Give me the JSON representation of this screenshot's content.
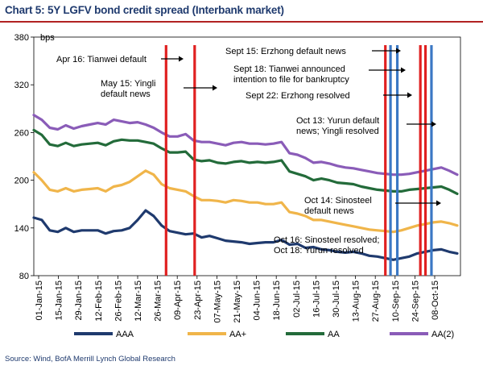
{
  "chart_data": {
    "type": "line",
    "title": "Chart 5: 5Y LGFV bond credit spread (Interbank market)",
    "ylabel": "bps",
    "ylim": [
      80,
      380
    ],
    "yticks": [
      80,
      140,
      200,
      260,
      320,
      380
    ],
    "xlabels": [
      "01-Jan-15",
      "15-Jan-15",
      "29-Jan-15",
      "12-Feb-15",
      "26-Feb-15",
      "12-Mar-15",
      "26-Mar-15",
      "09-Apr-15",
      "23-Apr-15",
      "07-May-15",
      "21-May-15",
      "04-Jun-15",
      "18-Jun-15",
      "02-Jul-15",
      "16-Jul-15",
      "30-Jul-15",
      "13-Aug-15",
      "27-Aug-15",
      "10-Sep-15",
      "24-Sep-15",
      "08-Oct-15"
    ],
    "source": "Source: Wind, BofA Merrill Lynch Global Research",
    "series": [
      {
        "name": "AAA",
        "color": "#1f3a6e",
        "values": [
          153,
          150,
          137,
          135,
          140,
          135,
          137,
          137,
          137,
          133,
          136,
          137,
          140,
          150,
          162,
          155,
          143,
          136,
          134,
          132,
          133,
          128,
          130,
          127,
          124,
          123,
          122,
          120,
          121,
          122,
          122,
          125,
          119,
          120,
          115,
          116,
          113,
          112,
          110,
          109,
          110,
          108,
          105,
          104,
          102,
          100,
          102,
          104,
          108,
          110,
          112,
          113,
          110,
          108
        ]
      },
      {
        "name": "AA+",
        "color": "#f0b54a",
        "values": [
          210,
          200,
          188,
          186,
          190,
          186,
          188,
          189,
          190,
          186,
          192,
          194,
          198,
          205,
          212,
          207,
          195,
          190,
          188,
          186,
          180,
          175,
          175,
          174,
          172,
          175,
          174,
          172,
          172,
          170,
          170,
          172,
          160,
          158,
          155,
          150,
          150,
          148,
          146,
          144,
          142,
          140,
          138,
          137,
          136,
          135,
          137,
          140,
          143,
          145,
          147,
          148,
          146,
          143
        ]
      },
      {
        "name": "AA",
        "color": "#236b3a",
        "values": [
          263,
          257,
          245,
          243,
          247,
          243,
          245,
          246,
          247,
          244,
          249,
          251,
          250,
          250,
          248,
          246,
          240,
          235,
          235,
          236,
          226,
          224,
          225,
          222,
          221,
          223,
          224,
          222,
          223,
          222,
          223,
          225,
          211,
          208,
          205,
          200,
          202,
          200,
          197,
          196,
          195,
          192,
          190,
          188,
          187,
          186,
          186,
          188,
          189,
          190,
          191,
          192,
          188,
          183
        ]
      },
      {
        "name": "AA(2)",
        "color": "#8a5cb8",
        "values": [
          282,
          276,
          266,
          264,
          269,
          265,
          268,
          270,
          272,
          270,
          276,
          274,
          272,
          273,
          270,
          266,
          260,
          255,
          255,
          258,
          250,
          248,
          248,
          246,
          244,
          247,
          248,
          246,
          246,
          245,
          246,
          248,
          234,
          232,
          228,
          222,
          223,
          221,
          218,
          216,
          215,
          213,
          211,
          209,
          208,
          207,
          207,
          208,
          210,
          212,
          214,
          216,
          212,
          207
        ]
      }
    ],
    "events": [
      {
        "x": 0.31,
        "color": "#e02020"
      },
      {
        "x": 0.377,
        "color": "#e02020"
      },
      {
        "x": 0.824,
        "color": "#e02020"
      },
      {
        "x": 0.836,
        "color": "#3b78c4"
      },
      {
        "x": 0.852,
        "color": "#3b78c4"
      },
      {
        "x": 0.906,
        "color": "#e02020"
      },
      {
        "x": 0.918,
        "color": "#e02020"
      },
      {
        "x": 0.932,
        "color": "#3b78c4"
      }
    ],
    "annotations": [
      {
        "lines": [
          "Apr 16: Tianwei default"
        ]
      },
      {
        "lines": [
          "May 15: Yingli",
          "default news"
        ]
      },
      {
        "lines": [
          "Sept 15: Erzhong default news"
        ]
      },
      {
        "lines": [
          "Sept 18: Tianwei announced",
          "intention to file for bankruptcy"
        ]
      },
      {
        "lines": [
          "Sept 22: Erzhong resolved"
        ]
      },
      {
        "lines": [
          "Oct 13: Yurun default",
          "news; Yingli resolved"
        ]
      },
      {
        "lines": [
          "Oct 14: Sinosteel",
          "default news"
        ]
      },
      {
        "lines": [
          "Oct 16: Sinosteel resolved;",
          "Oct 18: Yurun resolved"
        ]
      }
    ]
  }
}
